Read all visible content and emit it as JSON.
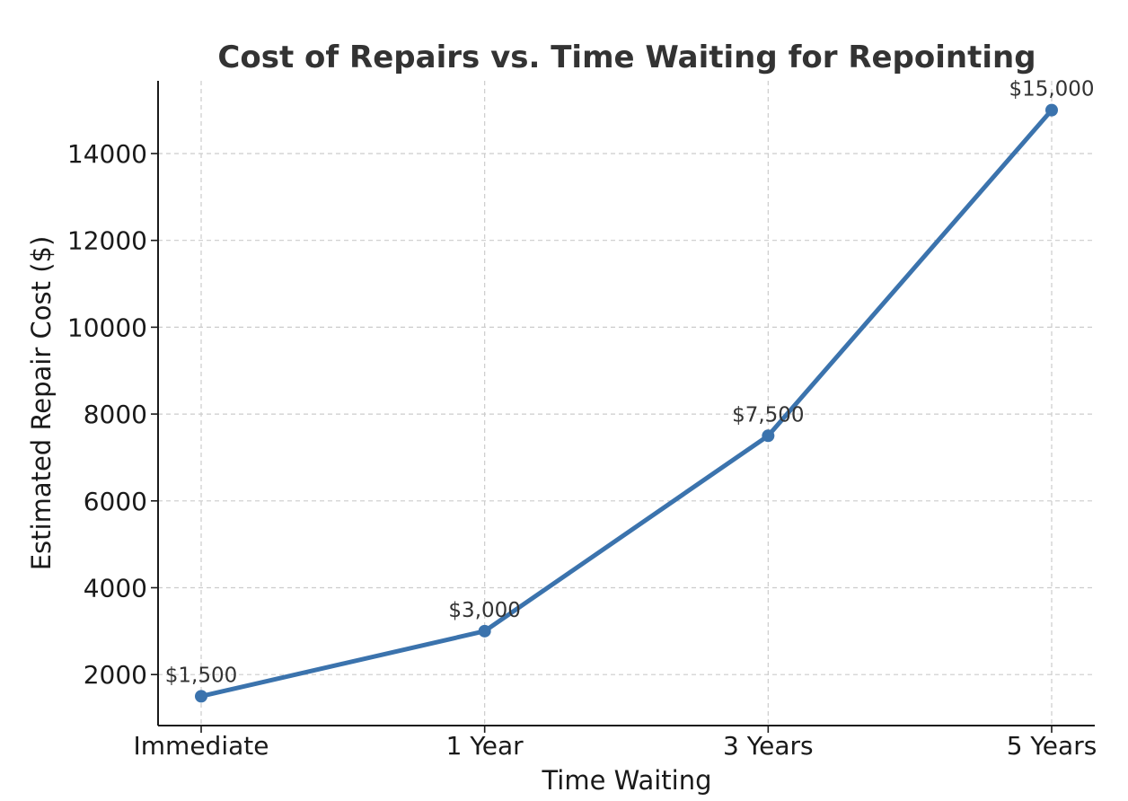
{
  "chart_data": {
    "type": "line",
    "title": "Cost of Repairs vs. Time Waiting for Repointing",
    "xlabel": "Time Waiting",
    "ylabel": "Estimated Repair Cost ($)",
    "categories": [
      "Immediate",
      "1 Year",
      "3 Years",
      "5 Years"
    ],
    "series": [
      {
        "values": [
          1500,
          3000,
          7500,
          15000
        ],
        "labels": [
          "$1,500",
          "$3,000",
          "$7,500",
          "$15,000"
        ],
        "color": "#3b73ad"
      }
    ],
    "yticks": [
      2000,
      4000,
      6000,
      8000,
      10000,
      12000,
      14000
    ],
    "ytick_labels": [
      "2000",
      "4000",
      "6000",
      "8000",
      "10000",
      "12000",
      "14000"
    ],
    "ylim": [
      825,
      15675
    ],
    "grid": true,
    "grid_style": "dashed",
    "marker": "circle"
  }
}
